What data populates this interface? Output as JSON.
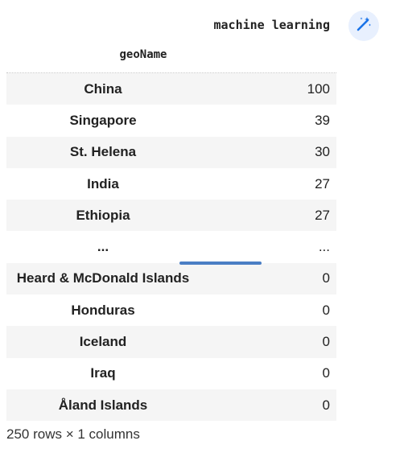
{
  "column_header": "machine learning",
  "index_name": "geoName",
  "rows": [
    {
      "geo": "China",
      "value": "100"
    },
    {
      "geo": "Singapore",
      "value": "39"
    },
    {
      "geo": "St. Helena",
      "value": "30"
    },
    {
      "geo": "India",
      "value": "27"
    },
    {
      "geo": "Ethiopia",
      "value": "27"
    },
    {
      "geo": "...",
      "value": "..."
    },
    {
      "geo": "Heard & McDonald Islands",
      "value": "0"
    },
    {
      "geo": "Honduras",
      "value": "0"
    },
    {
      "geo": "Iceland",
      "value": "0"
    },
    {
      "geo": "Iraq",
      "value": "0"
    },
    {
      "geo": "Åland Islands",
      "value": "0"
    }
  ],
  "footer": "250 rows × 1 columns",
  "icons": {
    "magic_button": "magic-wand-icon"
  },
  "colors": {
    "stripe": "#f5f5f5",
    "magic_bg": "#e8f0fe",
    "magic_fg": "#1a73e8",
    "scroll_indicator": "#4a7ec4"
  }
}
